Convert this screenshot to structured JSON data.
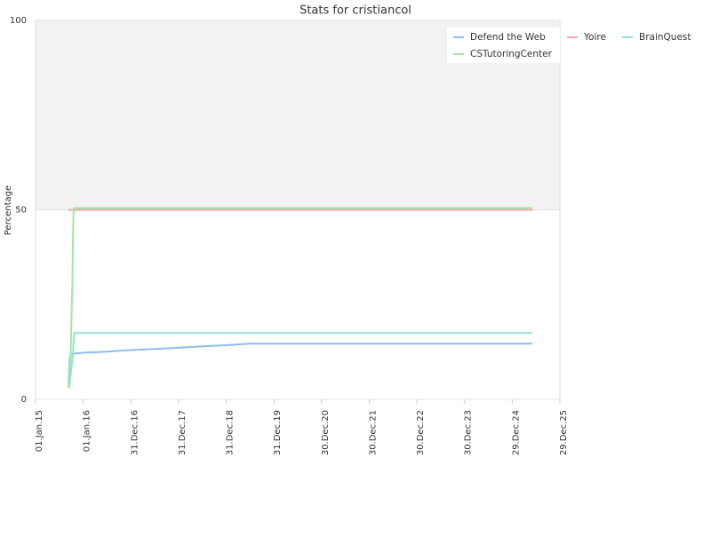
{
  "chart_data": {
    "type": "line",
    "title": "Stats for cristiancol",
    "y_label": "Percentage",
    "xlim": [
      "2015-01-01",
      "2025-12-29"
    ],
    "xticks": [
      {
        "value": "2015-01-01",
        "label": "01.Jan.15"
      },
      {
        "value": "2016-01-01",
        "label": "01.Jan.16"
      },
      {
        "value": "2016-12-31",
        "label": "31.Dec.16"
      },
      {
        "value": "2017-12-31",
        "label": "31.Dec.17"
      },
      {
        "value": "2018-12-31",
        "label": "31.Dec.18"
      },
      {
        "value": "2019-12-31",
        "label": "31.Dec.19"
      },
      {
        "value": "2020-12-30",
        "label": "30.Dec.20"
      },
      {
        "value": "2021-12-30",
        "label": "30.Dec.21"
      },
      {
        "value": "2022-12-30",
        "label": "30.Dec.22"
      },
      {
        "value": "2023-12-30",
        "label": "30.Dec.23"
      },
      {
        "value": "2024-12-29",
        "label": "29.Dec.24"
      },
      {
        "value": "2025-12-29",
        "label": "29.Dec.25"
      }
    ],
    "ylim": [
      0,
      100
    ],
    "yticks": [
      0,
      50,
      100
    ],
    "plot_bands": [
      {
        "from": 50,
        "to": 100,
        "color": "#f2f2f2"
      }
    ],
    "series": [
      {
        "name": "Defend the Web",
        "color": "#8fbdf0",
        "x": [
          "2015-09-10",
          "2015-09-20",
          "2015-10-01",
          "2016-01-01",
          "2016-07-01",
          "2017-01-01",
          "2017-07-01",
          "2018-01-01",
          "2018-07-01",
          "2019-01-01",
          "2019-07-01",
          "2025-06-01"
        ],
        "values": [
          4,
          11,
          12,
          12.3,
          12.6,
          13,
          13.3,
          13.6,
          14,
          14.3,
          14.7,
          14.7
        ]
      },
      {
        "name": "Yoire",
        "color": "#f2a6b8",
        "x": [
          "2015-09-10",
          "2025-06-01"
        ],
        "values": [
          50,
          50
        ]
      },
      {
        "name": "BrainQuest",
        "color": "#8ee3dc",
        "x": [
          "2015-09-15",
          "2015-10-15",
          "2015-10-20",
          "2015-10-25",
          "2025-06-01"
        ],
        "values": [
          3,
          12,
          16,
          17.5,
          17.5
        ]
      },
      {
        "name": "CSTutoringCenter",
        "color": "#a3e89c",
        "x": [
          "2015-09-10",
          "2015-09-25",
          "2015-10-01",
          "2015-10-10",
          "2015-10-15",
          "2015-10-20",
          "2025-06-01"
        ],
        "values": [
          3,
          10,
          18,
          31,
          44,
          50.5,
          50.5
        ]
      }
    ]
  }
}
